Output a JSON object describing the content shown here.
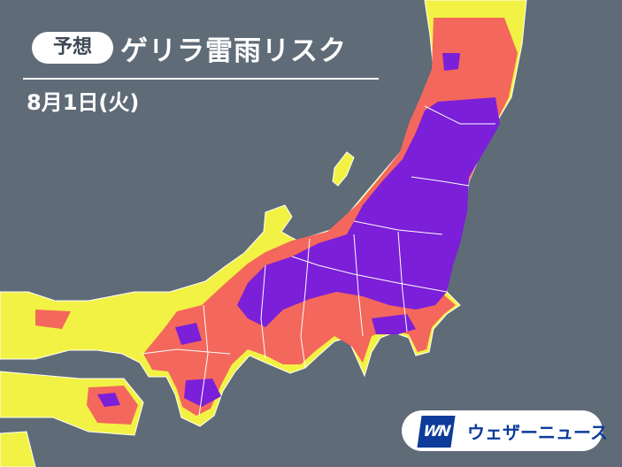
{
  "header": {
    "badge": "予想",
    "title": "ゲリラ雷雨リスク",
    "date": "8月1日(火)"
  },
  "logo": {
    "mark": "WN",
    "name": "ウェザーニュース"
  },
  "map": {
    "region": "Central and Eastern Japan",
    "risk_colors": {
      "background_sea": "#5f6b77",
      "low": "#f2f244",
      "medium": "#f4675c",
      "high": "#7b1fd8"
    }
  }
}
